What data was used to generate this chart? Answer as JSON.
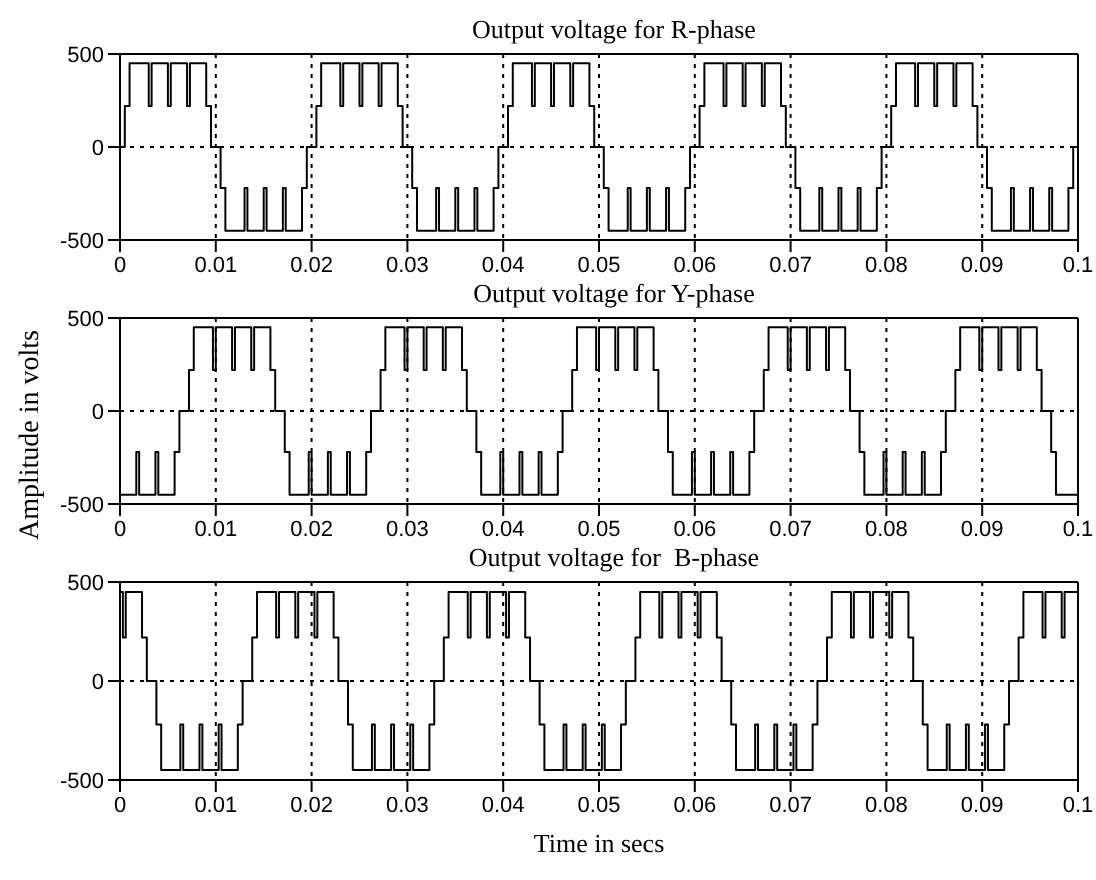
{
  "chart_data": [
    {
      "type": "step",
      "title": "Output voltage for R-phase",
      "xlim": [
        0,
        0.1
      ],
      "xticks": [
        0,
        0.01,
        0.02,
        0.03,
        0.04,
        0.05,
        0.06,
        0.07,
        0.08,
        0.09,
        0.1
      ],
      "ylim": [
        -500,
        500
      ],
      "yticks": [
        -500,
        0,
        500
      ],
      "grid": true,
      "series": [
        {
          "color": "#000000",
          "x": [
            0,
            0.0005,
            0.001,
            0.003,
            0.0033,
            0.005,
            0.0053,
            0.007,
            0.0073,
            0.009,
            0.0095,
            0.0105,
            0.011,
            0.013,
            0.0133,
            0.015,
            0.0153,
            0.017,
            0.0173,
            0.019,
            0.0195,
            0.0205,
            0.021,
            0.023,
            0.0233,
            0.025,
            0.0253,
            0.027,
            0.0273,
            0.029,
            0.0295,
            0.0305,
            0.031,
            0.033,
            0.0333,
            0.035,
            0.0353,
            0.037,
            0.0373,
            0.039,
            0.0395,
            0.0405,
            0.041,
            0.043,
            0.0433,
            0.045,
            0.0453,
            0.047,
            0.0473,
            0.049,
            0.0495,
            0.0505,
            0.051,
            0.053,
            0.0533,
            0.055,
            0.0553,
            0.057,
            0.0573,
            0.059,
            0.0595,
            0.0605,
            0.061,
            0.063,
            0.0633,
            0.065,
            0.0653,
            0.067,
            0.0673,
            0.069,
            0.0695,
            0.0705,
            0.071,
            0.073,
            0.0733,
            0.075,
            0.0753,
            0.077,
            0.0773,
            0.079,
            0.0795,
            0.0805,
            0.081,
            0.083,
            0.0833,
            0.085,
            0.0853,
            0.087,
            0.0873,
            0.089,
            0.0895,
            0.0905,
            0.091,
            0.093,
            0.0933,
            0.095,
            0.0953,
            0.097,
            0.0973,
            0.099,
            0.0995,
            0.1
          ],
          "values": [
            0,
            220,
            450,
            220,
            450,
            220,
            450,
            220,
            450,
            220,
            0,
            -220,
            -450,
            -220,
            -450,
            -220,
            -450,
            -220,
            -450,
            -220,
            0,
            220,
            450,
            220,
            450,
            220,
            450,
            220,
            450,
            220,
            0,
            -220,
            -450,
            -220,
            -450,
            -220,
            -450,
            -220,
            -450,
            -220,
            0,
            220,
            450,
            220,
            450,
            220,
            450,
            220,
            450,
            220,
            0,
            -220,
            -450,
            -220,
            -450,
            -220,
            -450,
            -220,
            -450,
            -220,
            0,
            220,
            450,
            220,
            450,
            220,
            450,
            220,
            450,
            220,
            0,
            -220,
            -450,
            -220,
            -450,
            -220,
            -450,
            -220,
            -450,
            -220,
            0,
            220,
            450,
            220,
            450,
            220,
            450,
            220,
            450,
            220,
            0,
            -220,
            -450,
            -220,
            -450,
            -220,
            -450,
            -220,
            -450,
            -220,
            0,
            0
          ]
        }
      ]
    },
    {
      "type": "step",
      "title": "Output voltage for Y-phase",
      "ylabel": "Amplitude in volts",
      "xlim": [
        0,
        0.1
      ],
      "xticks": [
        0,
        0.01,
        0.02,
        0.03,
        0.04,
        0.05,
        0.06,
        0.07,
        0.08,
        0.09,
        0.1
      ],
      "ylim": [
        -500,
        500
      ],
      "yticks": [
        -500,
        0,
        500
      ],
      "grid": true,
      "series": [
        {
          "color": "#000000",
          "x": [
            0,
            0.0017,
            0.002,
            0.0037,
            0.004,
            0.0057,
            0.0062,
            0.0072,
            0.0077,
            0.0097,
            0.01,
            0.0117,
            0.012,
            0.0137,
            0.014,
            0.0157,
            0.0162,
            0.0172,
            0.0177,
            0.0197,
            0.02,
            0.0217,
            0.022,
            0.0237,
            0.024,
            0.0257,
            0.0262,
            0.0272,
            0.0277,
            0.0297,
            0.03,
            0.0317,
            0.032,
            0.0337,
            0.034,
            0.0357,
            0.0362,
            0.0372,
            0.0377,
            0.0397,
            0.04,
            0.0417,
            0.042,
            0.0437,
            0.044,
            0.0457,
            0.0462,
            0.0472,
            0.0477,
            0.0497,
            0.05,
            0.0517,
            0.052,
            0.0537,
            0.054,
            0.0557,
            0.0562,
            0.0572,
            0.0577,
            0.0597,
            0.06,
            0.0617,
            0.062,
            0.0637,
            0.064,
            0.0657,
            0.0662,
            0.0672,
            0.0677,
            0.0697,
            0.07,
            0.0717,
            0.072,
            0.0737,
            0.074,
            0.0757,
            0.0762,
            0.0772,
            0.0777,
            0.0797,
            0.08,
            0.0817,
            0.082,
            0.0837,
            0.084,
            0.0857,
            0.0862,
            0.0872,
            0.0877,
            0.0897,
            0.09,
            0.0917,
            0.092,
            0.0937,
            0.094,
            0.0957,
            0.0962,
            0.0972,
            0.0977,
            0.1
          ],
          "values": [
            -450,
            -220,
            -450,
            -220,
            -450,
            -220,
            0,
            220,
            450,
            220,
            450,
            220,
            450,
            220,
            450,
            220,
            0,
            -220,
            -450,
            -220,
            -450,
            -220,
            -450,
            -220,
            -450,
            -220,
            0,
            220,
            450,
            220,
            450,
            220,
            450,
            220,
            450,
            220,
            0,
            -220,
            -450,
            -220,
            -450,
            -220,
            -450,
            -220,
            -450,
            -220,
            0,
            220,
            450,
            220,
            450,
            220,
            450,
            220,
            450,
            220,
            0,
            -220,
            -450,
            -220,
            -450,
            -220,
            -450,
            -220,
            -450,
            -220,
            0,
            220,
            450,
            220,
            450,
            220,
            450,
            220,
            450,
            220,
            0,
            -220,
            -450,
            -220,
            -450,
            -220,
            -450,
            -220,
            -450,
            -220,
            0,
            220,
            450,
            220,
            450,
            220,
            450,
            220,
            450,
            220,
            0,
            -220,
            -450,
            -450
          ]
        }
      ]
    },
    {
      "type": "step",
      "title": "Output voltage for  B-phase",
      "xlabel": "Time in secs",
      "xlim": [
        0,
        0.1
      ],
      "xticks": [
        0,
        0.01,
        0.02,
        0.03,
        0.04,
        0.05,
        0.06,
        0.07,
        0.08,
        0.09,
        0.1
      ],
      "ylim": [
        -500,
        500
      ],
      "yticks": [
        -500,
        0,
        500
      ],
      "grid": true,
      "series": [
        {
          "color": "#000000",
          "x": [
            0,
            0.0003,
            0.0006,
            0.0023,
            0.0028,
            0.0038,
            0.0043,
            0.0063,
            0.0066,
            0.0083,
            0.0086,
            0.0103,
            0.0106,
            0.0123,
            0.0128,
            0.0138,
            0.0143,
            0.0163,
            0.0166,
            0.0183,
            0.0186,
            0.0203,
            0.0206,
            0.0223,
            0.0228,
            0.0238,
            0.0243,
            0.0263,
            0.0266,
            0.0283,
            0.0286,
            0.0303,
            0.0306,
            0.0323,
            0.0328,
            0.0338,
            0.0343,
            0.0363,
            0.0366,
            0.0383,
            0.0386,
            0.0403,
            0.0406,
            0.0423,
            0.0428,
            0.0438,
            0.0443,
            0.0463,
            0.0466,
            0.0483,
            0.0486,
            0.0503,
            0.0506,
            0.0523,
            0.0528,
            0.0538,
            0.0543,
            0.0563,
            0.0566,
            0.0583,
            0.0586,
            0.0603,
            0.0606,
            0.0623,
            0.0628,
            0.0638,
            0.0643,
            0.0663,
            0.0666,
            0.0683,
            0.0686,
            0.0703,
            0.0706,
            0.0723,
            0.0728,
            0.0738,
            0.0743,
            0.0763,
            0.0766,
            0.0783,
            0.0786,
            0.0803,
            0.0806,
            0.0823,
            0.0828,
            0.0838,
            0.0843,
            0.0863,
            0.0866,
            0.0883,
            0.0886,
            0.0903,
            0.0906,
            0.0923,
            0.0928,
            0.0938,
            0.0943,
            0.0963,
            0.0966,
            0.0983,
            0.0986,
            0.1
          ],
          "values": [
            450,
            220,
            450,
            220,
            0,
            -220,
            -450,
            -220,
            -450,
            -220,
            -450,
            -220,
            -450,
            -220,
            0,
            220,
            450,
            220,
            450,
            220,
            450,
            220,
            450,
            220,
            0,
            -220,
            -450,
            -220,
            -450,
            -220,
            -450,
            -220,
            -450,
            -220,
            0,
            220,
            450,
            220,
            450,
            220,
            450,
            220,
            450,
            220,
            0,
            -220,
            -450,
            -220,
            -450,
            -220,
            -450,
            -220,
            -450,
            -220,
            0,
            220,
            450,
            220,
            450,
            220,
            450,
            220,
            450,
            220,
            0,
            -220,
            -450,
            -220,
            -450,
            -220,
            -450,
            -220,
            -450,
            -220,
            0,
            220,
            450,
            220,
            450,
            220,
            450,
            220,
            450,
            220,
            0,
            -220,
            -450,
            -220,
            -450,
            -220,
            -450,
            -220,
            -450,
            -220,
            0,
            220,
            450,
            220,
            450,
            220,
            450,
            450
          ]
        }
      ]
    }
  ]
}
